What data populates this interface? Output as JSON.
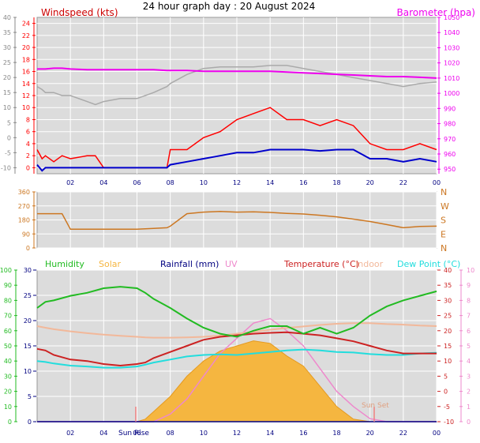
{
  "page_title": "24 hour graph day : 20 August 2024",
  "colors": {
    "background": "#ffffff",
    "plot_bg": "#dcdcdc",
    "wind_gust": "#ff0000",
    "wind_avg": "#0000cc",
    "barometer": "#ee00ee",
    "temp_left_axis": "#888888",
    "direction": "#cc7722",
    "humidity": "#22bb22",
    "solar": "#f5b640",
    "rainfall": "#000080",
    "uv": "#ee88cc",
    "temperature": "#cc2222",
    "indoor": "#f2b89a",
    "dewpoint": "#22dddd",
    "grid": "#ffffff"
  },
  "chart_data": [
    {
      "type": "line",
      "name": "wind-barometer",
      "title": "",
      "left_label": "Windspeed (kts)",
      "right_label": "Barometer (hpa)",
      "x_ticks": [
        "02",
        "04",
        "06",
        "08",
        "10",
        "12",
        "14",
        "16",
        "18",
        "20",
        "22",
        "00"
      ],
      "hours": [
        0,
        0.3,
        0.5,
        1,
        1.5,
        2,
        3,
        3.5,
        4,
        5,
        6,
        7,
        7.8,
        8,
        9,
        10,
        11,
        12,
        13,
        14,
        15,
        16,
        17,
        18,
        19,
        20,
        21,
        22,
        23,
        24
      ],
      "left_ticks": [
        40,
        35,
        30,
        25,
        20,
        15,
        10,
        5,
        0,
        -5,
        -10
      ],
      "wind_ticks": [
        24,
        22,
        20,
        18,
        16,
        14,
        12,
        10,
        8,
        6,
        4,
        2,
        0
      ],
      "baro_ticks": [
        1050,
        1040,
        1030,
        1020,
        1010,
        1000,
        990,
        980,
        970,
        960,
        950
      ],
      "ylim_wind": [
        -1,
        25
      ],
      "ylim_baro": [
        947,
        1050
      ],
      "ylim_left": [
        -12,
        40
      ],
      "series": [
        {
          "key": "gust",
          "values": [
            3,
            1.5,
            2,
            1,
            2,
            1.5,
            2,
            2,
            0,
            0,
            0,
            0,
            0,
            3,
            3,
            5,
            6,
            8,
            9,
            10,
            8,
            8,
            7,
            8,
            7,
            4,
            3,
            3,
            4,
            3
          ]
        },
        {
          "key": "avg",
          "values": [
            0.5,
            -0.5,
            0,
            0,
            0,
            0,
            0,
            0,
            0,
            0,
            0,
            0,
            0,
            0.5,
            1,
            1.5,
            2,
            2.5,
            2.5,
            3,
            3,
            3,
            2.8,
            3,
            3,
            1.5,
            1.5,
            1,
            1.5,
            1
          ]
        },
        {
          "key": "baro",
          "values": [
            1016,
            1016,
            1016,
            1016.5,
            1016.5,
            1016,
            1015.5,
            1015.5,
            1015.5,
            1015.5,
            1015.5,
            1015.5,
            1015,
            1015,
            1015,
            1014.5,
            1014.5,
            1014.5,
            1014.5,
            1014.5,
            1014,
            1013.5,
            1013,
            1012.5,
            1012,
            1011.5,
            1011,
            1011,
            1010.5,
            1010
          ]
        },
        {
          "key": "outdoor",
          "values": [
            17,
            16,
            15,
            15,
            14,
            14,
            12,
            11,
            12,
            13,
            13,
            15,
            17,
            18,
            21,
            23,
            23.5,
            23.5,
            23.5,
            24,
            24,
            23,
            22,
            21,
            20,
            19,
            18,
            17,
            18,
            18.5
          ]
        }
      ]
    },
    {
      "type": "line",
      "name": "wind-direction",
      "direction_ticks": [
        360,
        270,
        180,
        90,
        0
      ],
      "compass": [
        "N",
        "W",
        "S",
        "E",
        "N"
      ],
      "hours": [
        0,
        0.5,
        1,
        1.5,
        2,
        3,
        4,
        5,
        6,
        7,
        7.8,
        8,
        9,
        10,
        11,
        12,
        13,
        14,
        15,
        16,
        17,
        18,
        19,
        20,
        21,
        22,
        23,
        24
      ],
      "values": [
        220,
        220,
        220,
        220,
        120,
        120,
        120,
        120,
        120,
        125,
        130,
        140,
        220,
        230,
        235,
        230,
        232,
        228,
        222,
        218,
        210,
        200,
        185,
        170,
        150,
        130,
        138,
        140
      ],
      "ylim": [
        0,
        360
      ]
    },
    {
      "type": "area",
      "name": "multi-panel",
      "legend": [
        "Humidity",
        "Solar",
        "Rainfall (mm)",
        "UV",
        "Temperature (°C)",
        "Indoor",
        "Dew Point (°C)"
      ],
      "sun_rise_label": "Sun Rise",
      "sun_set_label": "Sun Set",
      "humidity_ticks": [
        100,
        90,
        80,
        70,
        60,
        50,
        40,
        30,
        20,
        10,
        0
      ],
      "rain_ticks": [
        30,
        25,
        20,
        15,
        10,
        5,
        0
      ],
      "temp_ticks": [
        40,
        35,
        30,
        25,
        20,
        15,
        10,
        5,
        0,
        -5,
        -10
      ],
      "uv_ticks": [
        10,
        9,
        8,
        7,
        6,
        5,
        4,
        3,
        2,
        1,
        0
      ],
      "hours": [
        0,
        0.5,
        1,
        2,
        3,
        4,
        5,
        6,
        6.5,
        7,
        8,
        9,
        10,
        11,
        12,
        13,
        14,
        15,
        16,
        17,
        18,
        19,
        20,
        21,
        22,
        23,
        24
      ],
      "humidity": [
        75,
        79,
        80,
        83,
        85,
        88,
        89,
        88,
        85,
        81,
        75,
        68,
        62,
        58,
        56,
        60,
        63,
        63,
        58,
        62,
        58,
        62,
        70,
        76,
        80,
        83,
        86
      ],
      "temperature": [
        14,
        13.5,
        12,
        10.5,
        10,
        9,
        8.5,
        9,
        9.5,
        11,
        13,
        15,
        17,
        18,
        18.5,
        19,
        19.3,
        19.5,
        19,
        18.5,
        17.5,
        16.5,
        15,
        13.5,
        12.5,
        12.5,
        12.5
      ],
      "indoor": [
        21.5,
        21,
        20.5,
        19.8,
        19.2,
        18.7,
        18.3,
        18,
        17.8,
        17.7,
        17.7,
        17.8,
        18,
        18.4,
        19,
        19.6,
        20.3,
        20.9,
        21.4,
        21.9,
        22.3,
        22.5,
        22.5,
        22.2,
        22,
        21.7,
        21.5
      ],
      "dewpoint": [
        10,
        9.7,
        9.2,
        8.5,
        8.2,
        7.8,
        7.8,
        8.2,
        8.8,
        9.5,
        10.5,
        11.5,
        12,
        12.2,
        12,
        12.5,
        13,
        13.5,
        13.8,
        13.5,
        13,
        12.8,
        12.3,
        12,
        12,
        12.5,
        12.7
      ],
      "solar": [
        0,
        0,
        0,
        0,
        0,
        0,
        0,
        0,
        0.5,
        2,
        5,
        9,
        12,
        14,
        15,
        16,
        15.5,
        13,
        11,
        7,
        3,
        0.5,
        0,
        0,
        0,
        0,
        0
      ],
      "uv": [
        0,
        0,
        0,
        0,
        0,
        0,
        0,
        0,
        0,
        0,
        0.5,
        1.5,
        3,
        4.5,
        5.5,
        6.5,
        6.8,
        6,
        5,
        3.5,
        2,
        1,
        0.2,
        0,
        0,
        0,
        0
      ],
      "rainfall": [
        0,
        0,
        0,
        0,
        0,
        0,
        0,
        0,
        0,
        0,
        0,
        0,
        0,
        0,
        0,
        0,
        0,
        0,
        0,
        0,
        0,
        0,
        0,
        0,
        0,
        0,
        0
      ],
      "ylim_humidity": [
        0,
        100
      ],
      "ylim_rain": [
        0,
        30
      ],
      "ylim_temp": [
        -10,
        40
      ],
      "ylim_uv": [
        0,
        10
      ]
    }
  ]
}
